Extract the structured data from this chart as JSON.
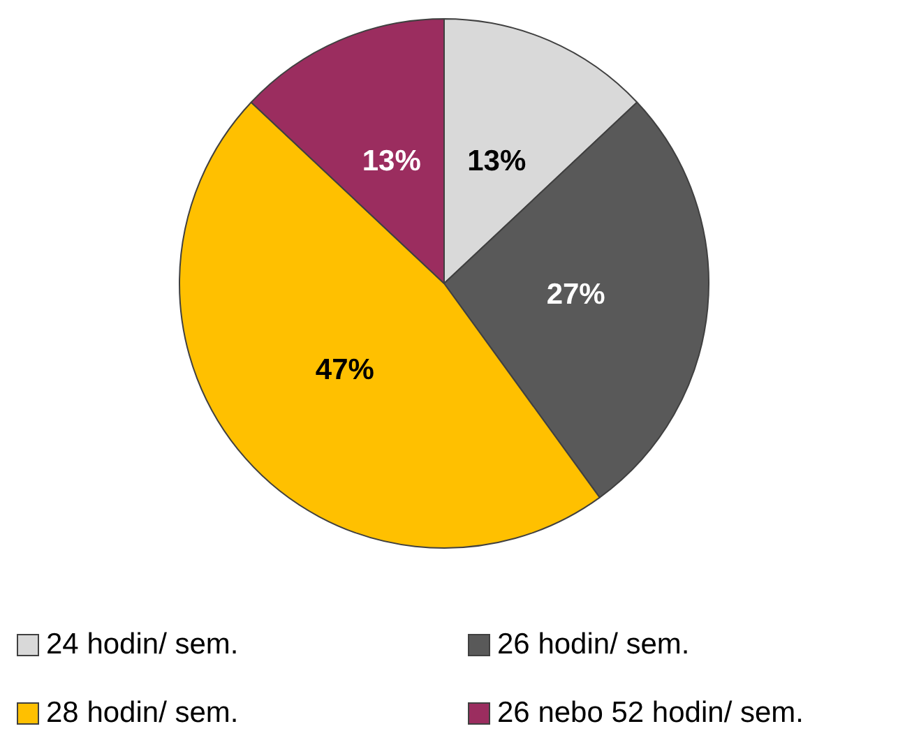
{
  "chart_data": {
    "type": "pie",
    "categories": [
      "24 hodin/ sem.",
      "26 hodin/ sem.",
      "28 hodin/ sem.",
      "26 nebo 52 hodin/ sem."
    ],
    "values": [
      13,
      27,
      47,
      13
    ],
    "colors": [
      "#d9d9d9",
      "#595959",
      "#ffc000",
      "#9b2d5f"
    ],
    "value_labels": [
      "13%",
      "27%",
      "47%",
      "13%"
    ],
    "legend": "bottom"
  }
}
